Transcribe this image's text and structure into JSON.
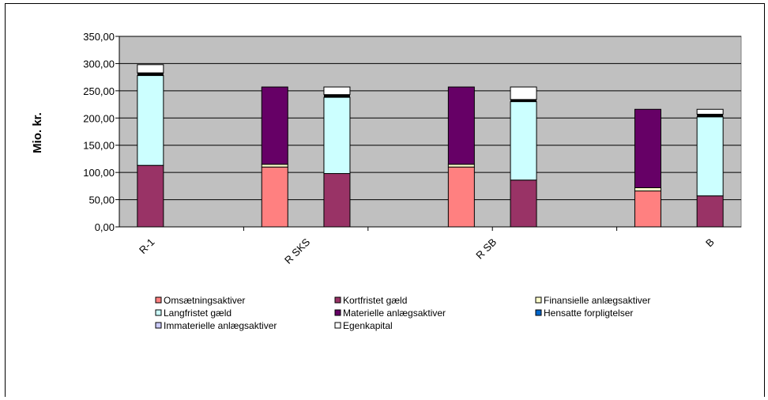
{
  "chart_data": {
    "type": "bar",
    "stacked": true,
    "ylabel": "Mio. kr.",
    "ylim": [
      0,
      350
    ],
    "yticks": [
      "0,00",
      "50,00",
      "100,00",
      "150,00",
      "200,00",
      "250,00",
      "300,00",
      "350,00"
    ],
    "grid": true,
    "legend_position": "bottom",
    "x_tick_labels": [
      "R-1",
      "R  SKS",
      "R SB",
      "B"
    ],
    "bars": [
      {
        "group": "R-1",
        "segments": [
          {
            "series": "Kortfristet gæld",
            "value": 113
          },
          {
            "series": "Langfristet gæld",
            "value": 165
          },
          {
            "series": "Hensatte forpligtelser",
            "value": 5
          },
          {
            "series": "Egenkapital",
            "value": 15
          }
        ]
      },
      {
        "group": "R  SKS",
        "segments": [
          {
            "series": "Omsætningsaktiver",
            "value": 110
          },
          {
            "series": "Finansielle anlægsaktiver",
            "value": 5
          },
          {
            "series": "Materielle anlægsaktiver",
            "value": 142
          }
        ]
      },
      {
        "group": "R  SKS",
        "segments": [
          {
            "series": "Kortfristet gæld",
            "value": 98
          },
          {
            "series": "Langfristet gæld",
            "value": 140
          },
          {
            "series": "Hensatte forpligtelser",
            "value": 5
          },
          {
            "series": "Egenkapital",
            "value": 14
          }
        ]
      },
      {
        "group": "R SB",
        "segments": [
          {
            "series": "Omsætningsaktiver",
            "value": 110
          },
          {
            "series": "Finansielle anlægsaktiver",
            "value": 5
          },
          {
            "series": "Materielle anlægsaktiver",
            "value": 142
          }
        ]
      },
      {
        "group": "R SB",
        "segments": [
          {
            "series": "Kortfristet gæld",
            "value": 86
          },
          {
            "series": "Langfristet gæld",
            "value": 144
          },
          {
            "series": "Hensatte forpligtelser",
            "value": 4
          },
          {
            "series": "Egenkapital",
            "value": 23
          }
        ]
      },
      {
        "group": "B",
        "segments": [
          {
            "series": "Omsætningsaktiver",
            "value": 66
          },
          {
            "series": "Finansielle anlægsaktiver",
            "value": 6
          },
          {
            "series": "Materielle anlægsaktiver",
            "value": 144
          }
        ]
      },
      {
        "group": "B",
        "segments": [
          {
            "series": "Kortfristet gæld",
            "value": 57
          },
          {
            "series": "Langfristet gæld",
            "value": 145
          },
          {
            "series": "Hensatte forpligtelser",
            "value": 5
          },
          {
            "series": "Egenkapital",
            "value": 9
          }
        ]
      }
    ],
    "legend": [
      {
        "name": "Omsætningsaktiver",
        "color": "#FF8080"
      },
      {
        "name": "Kortfristet gæld",
        "color": "#993366"
      },
      {
        "name": "Finansielle anlægsaktiver",
        "color": "#FFFFCC"
      },
      {
        "name": "Langfristet gæld",
        "color": "#CCFFFF"
      },
      {
        "name": "Materielle anlægsaktiver",
        "color": "#660066"
      },
      {
        "name": "Hensatte forpligtelser",
        "color": "#0066CC"
      },
      {
        "name": "Immaterielle anlægsaktiver",
        "color": "#CCCCFF"
      },
      {
        "name": "Egenkapital",
        "color": "#FFFFFF"
      }
    ],
    "colors": {
      "plot_background": "#C0C0C0",
      "gridline": "#000000"
    }
  }
}
